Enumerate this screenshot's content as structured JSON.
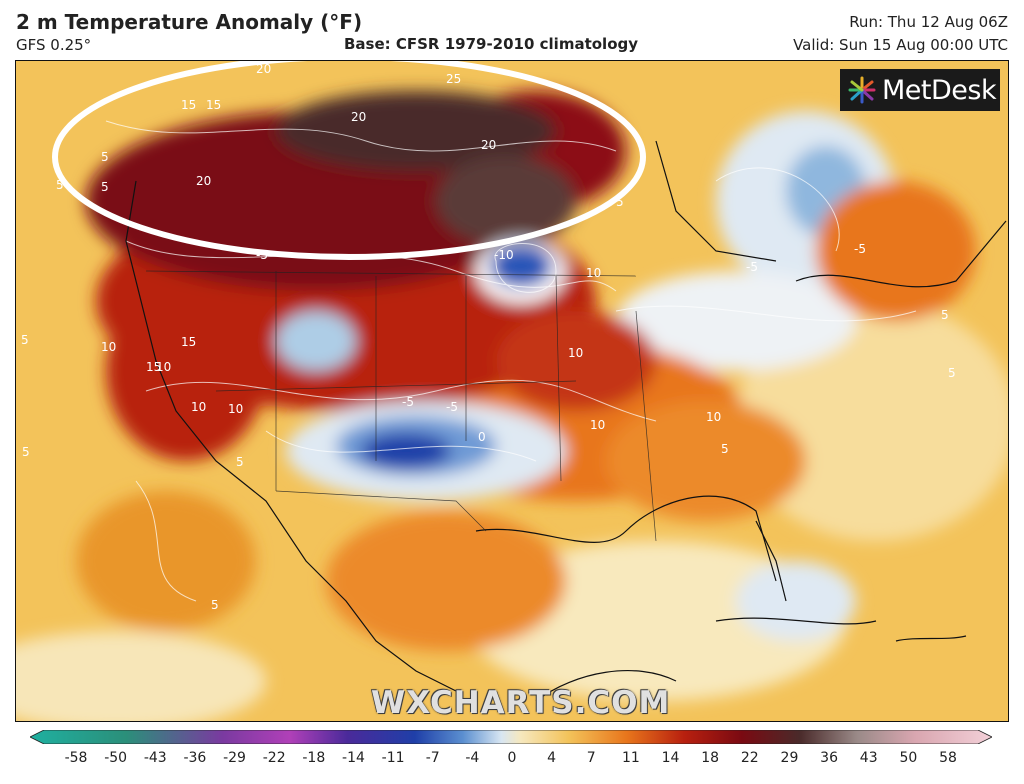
{
  "header": {
    "title": "2 m Temperature Anomaly (°F)",
    "model": "GFS 0.25°",
    "base": "Base: CFSR 1979-2010 climatology",
    "run": "Run: Thu 12 Aug 06Z",
    "valid": "Valid: Sun 15 Aug 00:00 UTC"
  },
  "logo": {
    "text": "MetDesk"
  },
  "watermark": "WXCHARTS.COM",
  "contour_labels": [
    "5",
    "10",
    "15",
    "20",
    "25",
    "20",
    "20",
    "15",
    "10",
    "5",
    "10",
    "15",
    "20",
    "5",
    "10",
    "-5",
    "-10",
    "-5",
    "10",
    "5",
    "0",
    "-5",
    "10",
    "15",
    "5",
    "5",
    "5",
    "10",
    "-5",
    "5",
    "-5",
    "10",
    "5",
    "5",
    "5"
  ],
  "colors": {
    "heat_max": "#3b1f1f",
    "deep_red": "#7a0a12",
    "red": "#b8200f",
    "orange": "#e8761c",
    "yellow": "#f3c35a",
    "pale": "#f7e6b8",
    "white": "#f3f3f3",
    "light_blue": "#aecde6",
    "blue": "#5b8fd0",
    "deep_blue": "#1f3fa8",
    "highlight_ellipse": "#ffffff"
  },
  "colorbar": {
    "ticks": [
      "-58",
      "-50",
      "-43",
      "-36",
      "-29",
      "-22",
      "-18",
      "-14",
      "-11",
      "-7",
      "-4",
      "0",
      "4",
      "7",
      "11",
      "14",
      "18",
      "22",
      "29",
      "36",
      "43",
      "50",
      "58"
    ]
  }
}
